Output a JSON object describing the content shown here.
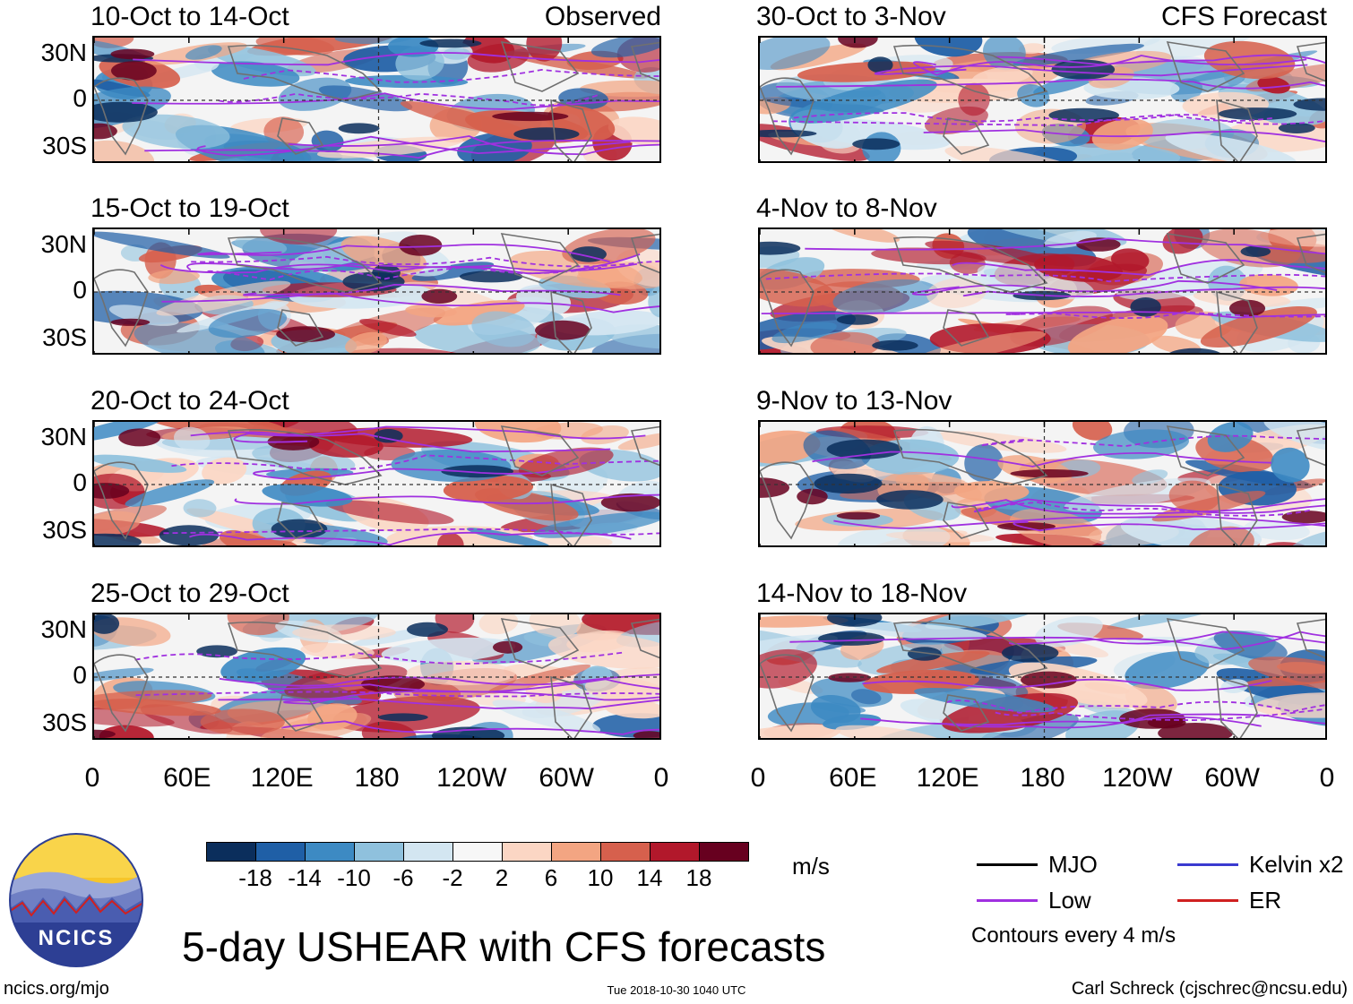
{
  "chart_data": {
    "type": "heatmap",
    "title": "5-day USHEAR with CFS forecasts",
    "units": "m/s",
    "x_ticks": [
      "0",
      "60E",
      "120E",
      "180",
      "120W",
      "60W",
      "0"
    ],
    "y_ticks": [
      "30N",
      "0",
      "30S"
    ],
    "colorbar": {
      "levels": [
        "-18",
        "-14",
        "-10",
        "-6",
        "-2",
        "2",
        "6",
        "10",
        "14",
        "18"
      ],
      "colors": [
        "#0b2e5c",
        "#1f5fa6",
        "#3d8ac3",
        "#8fc1dd",
        "#d3e6f1",
        "#f7f7f7",
        "#fbd6c4",
        "#f3a582",
        "#d6604d",
        "#b2182b",
        "#67001f"
      ]
    },
    "columns": [
      {
        "label": "Observed",
        "panels": [
          {
            "title": "10-Oct to 14-Oct"
          },
          {
            "title": "15-Oct to 19-Oct"
          },
          {
            "title": "20-Oct to 24-Oct"
          },
          {
            "title": "25-Oct to 29-Oct"
          }
        ]
      },
      {
        "label": "CFS Forecast",
        "panels": [
          {
            "title": "30-Oct to 3-Nov"
          },
          {
            "title": "4-Nov to 8-Nov"
          },
          {
            "title": "9-Nov to 13-Nov"
          },
          {
            "title": "14-Nov to 18-Nov"
          }
        ]
      }
    ],
    "legend": [
      {
        "label": "MJO",
        "color": "#000000"
      },
      {
        "label": "Kelvin x2",
        "color": "#3a3ad0"
      },
      {
        "label": "Low",
        "color": "#a030e0"
      },
      {
        "label": "ER",
        "color": "#d02020"
      }
    ],
    "contour_note": "Contours every 4 m/s"
  },
  "footer": {
    "logo_text": "NCICS",
    "site": "ncics.org/mjo",
    "timestamp": "Tue 2018-10-30 1040 UTC",
    "author": "Carl Schreck (cjschrec@ncsu.edu)"
  }
}
